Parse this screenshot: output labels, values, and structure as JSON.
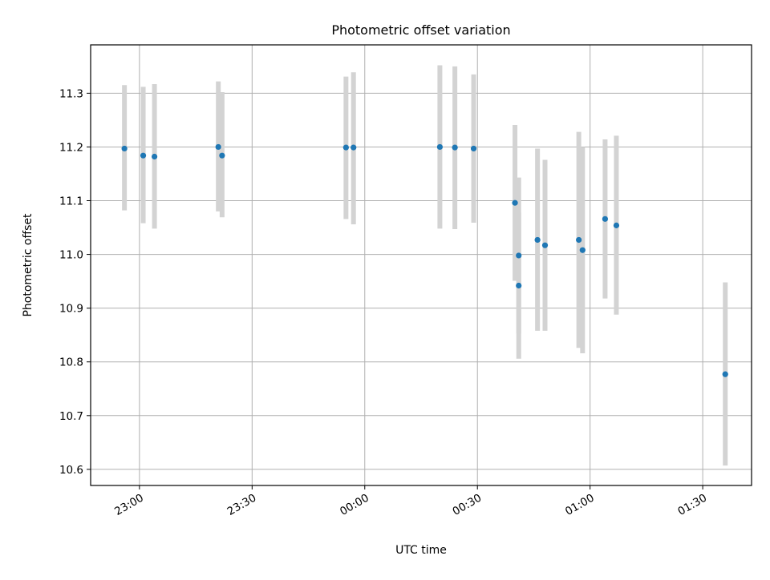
{
  "chart_data": {
    "type": "scatter",
    "title": "Photometric offset variation",
    "xlabel": "UTC time",
    "ylabel": "Photometric offset",
    "x_axis_type": "time",
    "xlim": [
      "22:47",
      "01:43"
    ],
    "ylim": [
      10.57,
      11.39
    ],
    "x_ticks": [
      "23:00",
      "23:30",
      "00:00",
      "00:30",
      "01:00",
      "01:30"
    ],
    "y_ticks": [
      10.6,
      10.7,
      10.8,
      10.9,
      11.0,
      11.1,
      11.2,
      11.3
    ],
    "grid": true,
    "legend": "none",
    "series": [
      {
        "marker_color": "#1f77b4",
        "errorbar_color": "#d3d3d3",
        "points": [
          {
            "x": "22:56",
            "y": 11.197,
            "err_low": 11.082,
            "err_high": 11.315
          },
          {
            "x": "23:01",
            "y": 11.184,
            "err_low": 11.058,
            "err_high": 11.312
          },
          {
            "x": "23:04",
            "y": 11.182,
            "err_low": 11.048,
            "err_high": 11.317
          },
          {
            "x": "23:21",
            "y": 11.2,
            "err_low": 11.08,
            "err_high": 11.322
          },
          {
            "x": "23:22",
            "y": 11.184,
            "err_low": 11.069,
            "err_high": 11.302
          },
          {
            "x": "23:55",
            "y": 11.199,
            "err_low": 11.066,
            "err_high": 11.331
          },
          {
            "x": "23:57",
            "y": 11.199,
            "err_low": 11.056,
            "err_high": 11.339
          },
          {
            "x": "00:20",
            "y": 11.2,
            "err_low": 11.048,
            "err_high": 11.352
          },
          {
            "x": "00:24",
            "y": 11.199,
            "err_low": 11.047,
            "err_high": 11.35
          },
          {
            "x": "00:29",
            "y": 11.197,
            "err_low": 11.059,
            "err_high": 11.335
          },
          {
            "x": "00:40",
            "y": 11.096,
            "err_low": 10.951,
            "err_high": 11.241
          },
          {
            "x": "00:41",
            "y": 10.998,
            "err_low": 10.853,
            "err_high": 11.143
          },
          {
            "x": "00:41",
            "y": 10.942,
            "err_low": 10.806,
            "err_high": 11.078
          },
          {
            "x": "00:46",
            "y": 11.027,
            "err_low": 10.858,
            "err_high": 11.197
          },
          {
            "x": "00:48",
            "y": 11.017,
            "err_low": 10.858,
            "err_high": 11.176
          },
          {
            "x": "00:57",
            "y": 11.027,
            "err_low": 10.826,
            "err_high": 11.228
          },
          {
            "x": "00:58",
            "y": 11.008,
            "err_low": 10.816,
            "err_high": 11.2
          },
          {
            "x": "01:04",
            "y": 11.066,
            "err_low": 10.918,
            "err_high": 11.214
          },
          {
            "x": "01:07",
            "y": 11.054,
            "err_low": 10.888,
            "err_high": 11.221
          },
          {
            "x": "01:36",
            "y": 10.777,
            "err_low": 10.607,
            "err_high": 10.948
          }
        ]
      }
    ]
  }
}
